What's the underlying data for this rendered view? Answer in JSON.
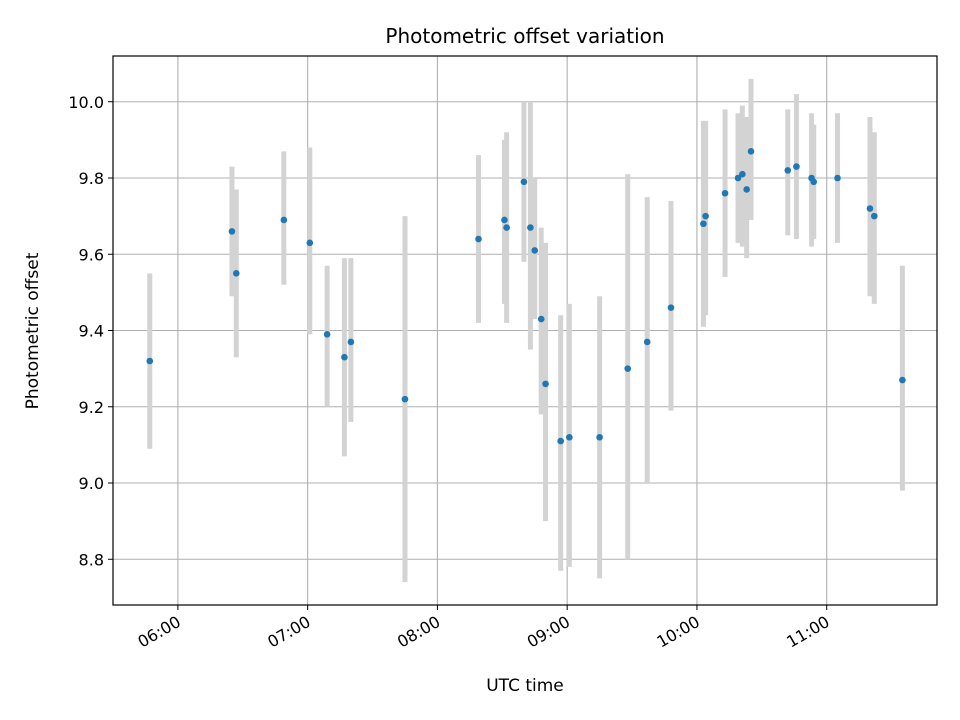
{
  "chart_data": {
    "type": "scatter",
    "title": "Photometric offset variation",
    "xlabel": "UTC time",
    "ylabel": "Photometric offset",
    "grid": true,
    "xlim": [
      "05:30",
      "11:51"
    ],
    "ylim": [
      8.68,
      10.12
    ],
    "x_ticks": [
      "06:00",
      "07:00",
      "08:00",
      "09:00",
      "10:00",
      "11:00"
    ],
    "y_ticks": [
      8.8,
      9.0,
      9.2,
      9.4,
      9.6,
      9.8,
      10.0
    ],
    "marker_color": "#1f77b4",
    "errorbar_color": "#d3d3d3",
    "points": [
      {
        "x": "05:47",
        "y": 9.32,
        "lo": 9.09,
        "hi": 9.55
      },
      {
        "x": "06:25",
        "y": 9.66,
        "lo": 9.49,
        "hi": 9.83
      },
      {
        "x": "06:27",
        "y": 9.55,
        "lo": 9.33,
        "hi": 9.77
      },
      {
        "x": "06:49",
        "y": 9.69,
        "lo": 9.52,
        "hi": 9.87
      },
      {
        "x": "07:01",
        "y": 9.63,
        "lo": 9.39,
        "hi": 9.88
      },
      {
        "x": "07:09",
        "y": 9.39,
        "lo": 9.2,
        "hi": 9.57
      },
      {
        "x": "07:17",
        "y": 9.33,
        "lo": 9.07,
        "hi": 9.59
      },
      {
        "x": "07:20",
        "y": 9.37,
        "lo": 9.16,
        "hi": 9.59
      },
      {
        "x": "07:45",
        "y": 9.22,
        "lo": 8.74,
        "hi": 9.7
      },
      {
        "x": "08:19",
        "y": 9.64,
        "lo": 9.42,
        "hi": 9.86
      },
      {
        "x": "08:31",
        "y": 9.69,
        "lo": 9.47,
        "hi": 9.9
      },
      {
        "x": "08:32",
        "y": 9.67,
        "lo": 9.42,
        "hi": 9.92
      },
      {
        "x": "08:40",
        "y": 9.79,
        "lo": 9.58,
        "hi": 10.0
      },
      {
        "x": "08:43",
        "y": 9.67,
        "lo": 9.35,
        "hi": 10.0
      },
      {
        "x": "08:45",
        "y": 9.61,
        "lo": 9.43,
        "hi": 9.8
      },
      {
        "x": "08:48",
        "y": 9.43,
        "lo": 9.18,
        "hi": 9.67
      },
      {
        "x": "08:50",
        "y": 9.26,
        "lo": 8.9,
        "hi": 9.63
      },
      {
        "x": "08:57",
        "y": 9.11,
        "lo": 8.77,
        "hi": 9.44
      },
      {
        "x": "09:01",
        "y": 9.12,
        "lo": 8.78,
        "hi": 9.47
      },
      {
        "x": "09:15",
        "y": 9.12,
        "lo": 8.75,
        "hi": 9.49
      },
      {
        "x": "09:28",
        "y": 9.3,
        "lo": 8.8,
        "hi": 9.81
      },
      {
        "x": "09:37",
        "y": 9.37,
        "lo": 9.0,
        "hi": 9.75
      },
      {
        "x": "09:48",
        "y": 9.46,
        "lo": 9.19,
        "hi": 9.74
      },
      {
        "x": "10:03",
        "y": 9.68,
        "lo": 9.41,
        "hi": 9.95
      },
      {
        "x": "10:04",
        "y": 9.7,
        "lo": 9.44,
        "hi": 9.95
      },
      {
        "x": "10:13",
        "y": 9.76,
        "lo": 9.54,
        "hi": 9.98
      },
      {
        "x": "10:19",
        "y": 9.8,
        "lo": 9.63,
        "hi": 9.97
      },
      {
        "x": "10:21",
        "y": 9.81,
        "lo": 9.62,
        "hi": 9.99
      },
      {
        "x": "10:23",
        "y": 9.77,
        "lo": 9.59,
        "hi": 9.96
      },
      {
        "x": "10:25",
        "y": 9.87,
        "lo": 9.69,
        "hi": 10.06
      },
      {
        "x": "10:42",
        "y": 9.82,
        "lo": 9.65,
        "hi": 9.98
      },
      {
        "x": "10:46",
        "y": 9.83,
        "lo": 9.64,
        "hi": 10.02
      },
      {
        "x": "10:53",
        "y": 9.8,
        "lo": 9.62,
        "hi": 9.97
      },
      {
        "x": "10:54",
        "y": 9.79,
        "lo": 9.64,
        "hi": 9.94
      },
      {
        "x": "11:05",
        "y": 9.8,
        "lo": 9.63,
        "hi": 9.97
      },
      {
        "x": "11:20",
        "y": 9.72,
        "lo": 9.49,
        "hi": 9.96
      },
      {
        "x": "11:22",
        "y": 9.7,
        "lo": 9.47,
        "hi": 9.92
      },
      {
        "x": "11:35",
        "y": 9.27,
        "lo": 8.98,
        "hi": 9.57
      }
    ]
  }
}
